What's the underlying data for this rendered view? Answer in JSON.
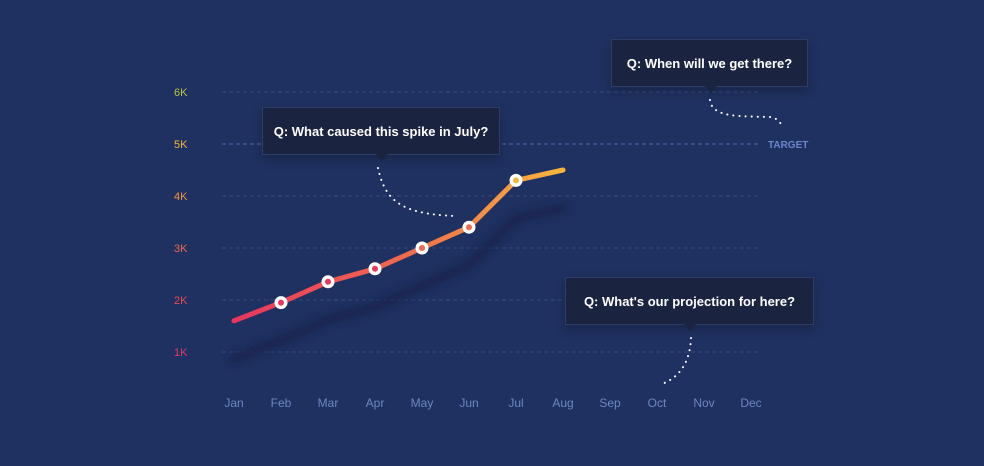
{
  "chart_data": {
    "type": "line",
    "categories": [
      "Jan",
      "Feb",
      "Mar",
      "Apr",
      "May",
      "Jun",
      "Jul",
      "Aug",
      "Sep",
      "Oct",
      "Nov",
      "Dec"
    ],
    "series": [
      {
        "values": [
          1.6,
          1.95,
          2.35,
          2.6,
          3.0,
          3.4,
          4.3,
          4.5,
          null,
          null,
          null,
          null
        ]
      }
    ],
    "markers": [
      1,
      2,
      3,
      4,
      5,
      6
    ],
    "y_ticks": [
      {
        "value": 1,
        "label": "1K",
        "color": "#e83a5a"
      },
      {
        "value": 2,
        "label": "2K",
        "color": "#ea4a52"
      },
      {
        "value": 3,
        "label": "3K",
        "color": "#f0684e"
      },
      {
        "value": 4,
        "label": "4K",
        "color": "#f5913f"
      },
      {
        "value": 5,
        "label": "5K",
        "color": "#f7b53c"
      },
      {
        "value": 6,
        "label": "6K",
        "color": "#b8c244"
      }
    ],
    "target": {
      "value": 5,
      "label": "TARGET"
    },
    "gradient": [
      "#e8365c",
      "#f0684e",
      "#f7b53c"
    ],
    "annotations": [
      {
        "text": "Q: What caused this spike in July?"
      },
      {
        "text": "Q: When will we get there?"
      },
      {
        "text": "Q: What's our projection for here?"
      }
    ],
    "xlabel": "",
    "ylabel": "",
    "ylim": [
      0,
      6
    ],
    "grid": true
  }
}
